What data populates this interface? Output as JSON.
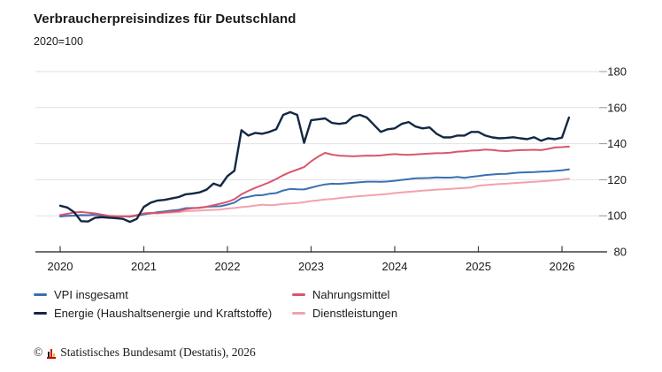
{
  "header": {
    "title": "Verbraucherpreisindizes für Deutschland",
    "subtitle": "2020=100"
  },
  "legend": {
    "items": [
      {
        "label": "VPI insgesamt",
        "color": "#3a70b2"
      },
      {
        "label": "Nahrungsmittel",
        "color": "#d9566b"
      },
      {
        "label": "Energie (Haushaltsenergie und Kraftstoffe)",
        "color": "#132743"
      },
      {
        "label": "Dienstleistungen",
        "color": "#f2a2ae"
      }
    ]
  },
  "footer": {
    "copyright_symbol": "©",
    "source_text": "Statistisches Bundesamt (Destatis), 2026",
    "logo_icon": "destatis-bar-chart-icon"
  },
  "chart_data": {
    "type": "line",
    "title": "Verbraucherpreisindizes für Deutschland",
    "subtitle": "2020=100",
    "x_frequency": "monthly",
    "x_start": "2020-01",
    "x_end": "2026-02",
    "x_tick_labels": [
      "2020",
      "2021",
      "2022",
      "2023",
      "2024",
      "2025",
      "2026"
    ],
    "y_ticks": [
      80,
      100,
      120,
      140,
      160,
      180
    ],
    "ylim": [
      80,
      190
    ],
    "grid": true,
    "legend_position": "bottom",
    "colors": {
      "grid": "#e2e2e2",
      "axis": "#3f3f3f",
      "tick_text": "#1a1a1a"
    },
    "series": [
      {
        "name": "VPI insgesamt",
        "color": "#3a70b2",
        "width": 2,
        "z": 2,
        "values": [
          99.6,
          100.0,
          100.1,
          100.4,
          100.3,
          100.7,
          99.9,
          99.8,
          99.6,
          99.7,
          99.5,
          100.1,
          100.8,
          101.4,
          102.0,
          102.4,
          102.9,
          103.3,
          104.2,
          104.3,
          104.4,
          105.0,
          105.2,
          105.3,
          106.2,
          107.3,
          109.8,
          110.5,
          111.3,
          111.4,
          112.2,
          112.6,
          114.0,
          114.9,
          114.7,
          114.6,
          115.6,
          116.6,
          117.4,
          117.8,
          117.7,
          118.0,
          118.3,
          118.6,
          118.9,
          118.9,
          118.8,
          119.0,
          119.4,
          119.9,
          120.3,
          120.8,
          120.9,
          121.0,
          121.3,
          121.2,
          121.2,
          121.5,
          121.1,
          121.6,
          122.0,
          122.6,
          122.9,
          123.2,
          123.3,
          123.7,
          124.0,
          124.1,
          124.2,
          124.5,
          124.6,
          124.9,
          125.2,
          125.8
        ]
      },
      {
        "name": "Nahrungsmittel",
        "color": "#d9566b",
        "width": 2,
        "z": 3,
        "values": [
          100.4,
          101.1,
          101.8,
          102.1,
          101.7,
          101.3,
          100.7,
          100.0,
          99.8,
          99.6,
          99.7,
          100.4,
          101.3,
          101.6,
          101.4,
          101.9,
          102.3,
          102.6,
          103.7,
          104.1,
          104.5,
          105.0,
          105.9,
          106.7,
          107.7,
          109.2,
          111.9,
          113.8,
          115.5,
          117.0,
          118.6,
          120.4,
          122.5,
          124.2,
          125.6,
          127.0,
          130.2,
          132.8,
          134.9,
          133.9,
          133.4,
          133.2,
          133.0,
          133.2,
          133.4,
          133.3,
          133.5,
          133.9,
          134.2,
          133.9,
          133.8,
          134.0,
          134.3,
          134.5,
          134.7,
          134.8,
          135.0,
          135.6,
          135.8,
          136.2,
          136.3,
          136.7,
          136.5,
          136.1,
          135.9,
          136.2,
          136.4,
          136.5,
          136.6,
          136.4,
          137.1,
          137.9,
          138.1,
          138.4
        ]
      },
      {
        "name": "Energie (Haushaltsenergie und Kraftstoffe)",
        "color": "#132743",
        "width": 2.4,
        "z": 4,
        "values": [
          105.6,
          104.6,
          102.0,
          97.0,
          96.8,
          98.9,
          99.2,
          98.9,
          98.7,
          98.3,
          96.6,
          98.3,
          104.9,
          107.3,
          108.5,
          108.8,
          109.6,
          110.4,
          111.9,
          112.3,
          113.0,
          114.5,
          117.9,
          116.5,
          122.0,
          125.0,
          147.5,
          144.5,
          146.0,
          145.5,
          146.5,
          148.0,
          156.0,
          157.5,
          156.0,
          140.5,
          153.0,
          153.5,
          154.0,
          151.5,
          151.0,
          151.5,
          155.0,
          156.0,
          154.5,
          150.5,
          146.5,
          148.0,
          148.5,
          151.0,
          152.0,
          149.5,
          148.5,
          149.0,
          145.5,
          143.5,
          143.5,
          144.5,
          144.5,
          146.5,
          146.5,
          144.5,
          143.5,
          143.0,
          143.2,
          143.6,
          143.0,
          142.5,
          143.6,
          141.6,
          143.0,
          142.5,
          143.4,
          154.5
        ]
      },
      {
        "name": "Dienstleistungen",
        "color": "#f2a2ae",
        "width": 2,
        "z": 1,
        "values": [
          99.7,
          99.9,
          100.0,
          100.1,
          100.2,
          100.3,
          99.8,
          99.7,
          99.6,
          99.8,
          99.9,
          100.1,
          100.9,
          101.2,
          101.4,
          101.6,
          101.8,
          102.0,
          102.6,
          102.7,
          102.9,
          103.1,
          103.3,
          103.5,
          104.0,
          104.3,
          104.8,
          105.1,
          105.7,
          106.2,
          105.9,
          106.1,
          106.5,
          106.8,
          107.1,
          107.5,
          108.2,
          108.6,
          109.0,
          109.3,
          109.8,
          110.2,
          110.6,
          110.9,
          111.2,
          111.5,
          111.8,
          112.1,
          112.6,
          113.0,
          113.3,
          113.6,
          113.9,
          114.2,
          114.5,
          114.7,
          114.9,
          115.2,
          115.4,
          115.7,
          116.7,
          117.0,
          117.3,
          117.6,
          117.8,
          118.1,
          118.4,
          118.6,
          118.8,
          119.1,
          119.4,
          119.7,
          120.1,
          120.6
        ]
      }
    ]
  }
}
